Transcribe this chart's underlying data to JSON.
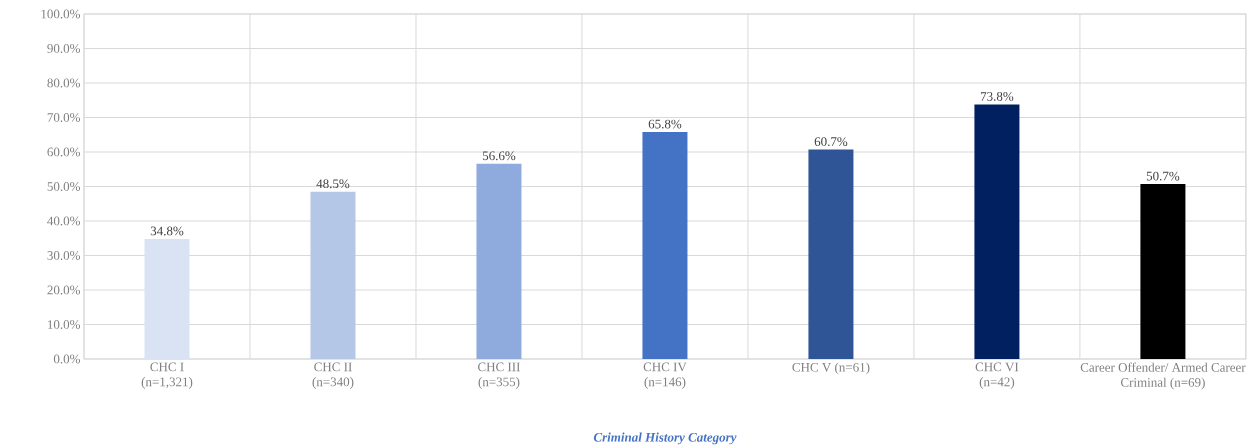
{
  "chart_data": {
    "type": "bar",
    "xlabel": "Criminal History Category",
    "categories": [
      "CHC I (n=1,321)",
      "CHC II (n=340)",
      "CHC III (n=355)",
      "CHC IV (n=146)",
      "CHC V (n=61)",
      "CHC VI (n=42)",
      "Career Offender/ Armed Career Criminal (n=69)"
    ],
    "values": [
      34.8,
      48.5,
      56.6,
      65.8,
      60.7,
      73.8,
      50.7
    ],
    "value_labels": [
      "34.8%",
      "48.5%",
      "56.6%",
      "65.8%",
      "60.7%",
      "73.8%",
      "50.7%"
    ],
    "colors": [
      "#dae3f3",
      "#b4c7e7",
      "#8faadc",
      "#4472c4",
      "#2f5597",
      "#002060",
      "#000000"
    ],
    "ylim": [
      0,
      100
    ],
    "yticks": [
      {
        "value": 0,
        "label": "0.0%"
      },
      {
        "value": 10,
        "label": "10.0%"
      },
      {
        "value": 20,
        "label": "20.0%"
      },
      {
        "value": 30,
        "label": "30.0%"
      },
      {
        "value": 40,
        "label": "40.0%"
      },
      {
        "value": 50,
        "label": "50.0%"
      },
      {
        "value": 60,
        "label": "60.0%"
      },
      {
        "value": 70,
        "label": "70.0%"
      },
      {
        "value": 80,
        "label": "80.0%"
      },
      {
        "value": 90,
        "label": "90.0%"
      },
      {
        "value": 100,
        "label": "100.0%"
      }
    ],
    "grid": true
  }
}
